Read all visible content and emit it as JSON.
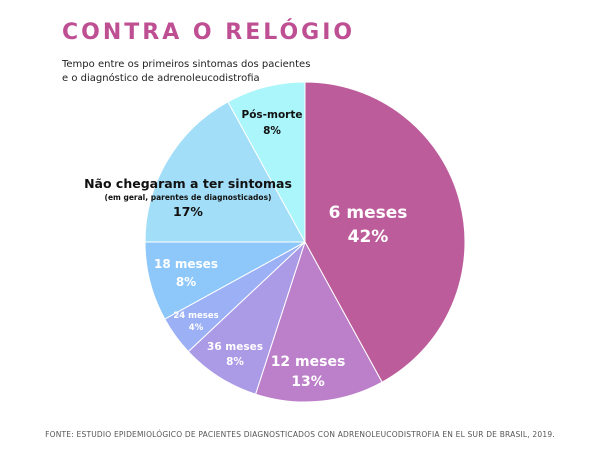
{
  "title": "CONTRA O RELÓGIO",
  "subtitle_lines": [
    "Tempo entre os primeiros sintomas dos pacientes",
    "e o diagnóstico de adrenoleucodistrofia"
  ],
  "source": "FONTE: ESTUDIO EPIDEMIOLÓGICO DE PACIENTES DIAGNOSTICADOS CON ADRENOLEUCODISTROFIA EN EL SUR DE BRASIL, 2019.",
  "chart_data": {
    "type": "pie",
    "title": "CONTRA O RELÓGIO",
    "slices": [
      {
        "label": "6 meses",
        "value": 42,
        "value_label": "42%",
        "color": "#bd5c9b",
        "text_color": "#ffffff"
      },
      {
        "label": "12 meses",
        "value": 13,
        "value_label": "13%",
        "color": "#bc7fc9",
        "text_color": "#ffffff"
      },
      {
        "label": "36 meses",
        "value": 8,
        "value_label": "8%",
        "color": "#ab9ae6",
        "text_color": "#ffffff"
      },
      {
        "label": "24 meses",
        "value": 4,
        "value_label": "4%",
        "color": "#9cb0f6",
        "text_color": "#ffffff"
      },
      {
        "label": "18 meses",
        "value": 8,
        "value_label": "8%",
        "color": "#8ec8fa",
        "text_color": "#ffffff"
      },
      {
        "label": "Não chegaram a ter sintomas",
        "sublabel": "(em geral, parentes de diagnosticados)",
        "value": 17,
        "value_label": "17%",
        "color": "#a3def8",
        "text_color": "#111111"
      },
      {
        "label": "Pós-morte",
        "value": 8,
        "value_label": "8%",
        "color": "#abf6fb",
        "text_color": "#111111"
      }
    ]
  }
}
